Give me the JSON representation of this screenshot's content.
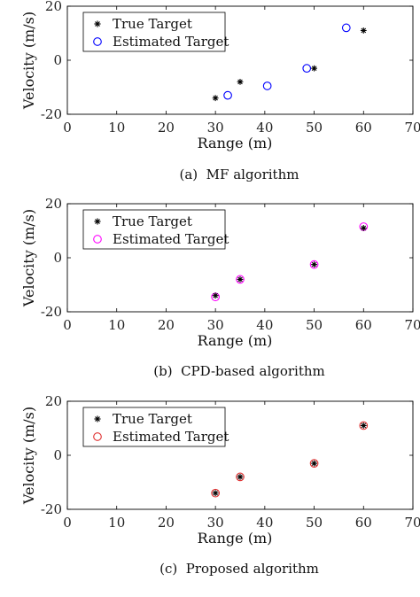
{
  "chart_data": [
    {
      "type": "scatter",
      "caption": "(a)  MF algorithm",
      "xlabel": "Range (m)",
      "ylabel": "Velocity (m/s)",
      "xlim": [
        0,
        70
      ],
      "ylim": [
        -20,
        20
      ],
      "xticks": [
        "0",
        "10",
        "20",
        "30",
        "40",
        "50",
        "60",
        "70"
      ],
      "yticks": [
        "20",
        "0",
        "-20"
      ],
      "grid": false,
      "legend_position": "top-left",
      "series": [
        {
          "name": "True Target",
          "marker": "asterisk",
          "color": "#000000",
          "points": [
            [
              30,
              -14
            ],
            [
              35,
              -8
            ],
            [
              50,
              -3
            ],
            [
              60,
              11
            ]
          ]
        },
        {
          "name": "Estimated Target",
          "marker": "circle",
          "color": "#0000ff",
          "points": [
            [
              32.5,
              -13
            ],
            [
              40.5,
              -9.5
            ],
            [
              48.5,
              -3
            ],
            [
              56.5,
              12
            ]
          ]
        }
      ]
    },
    {
      "type": "scatter",
      "caption": "(b)  CPD-based algorithm",
      "xlabel": "Range (m)",
      "ylabel": "Velocity (m/s)",
      "xlim": [
        0,
        70
      ],
      "ylim": [
        -20,
        20
      ],
      "xticks": [
        "0",
        "10",
        "20",
        "30",
        "40",
        "50",
        "60",
        "70"
      ],
      "yticks": [
        "20",
        "0",
        "-20"
      ],
      "grid": false,
      "legend_position": "top-left",
      "series": [
        {
          "name": "True Target",
          "marker": "asterisk",
          "color": "#000000",
          "points": [
            [
              30,
              -14
            ],
            [
              35,
              -8
            ],
            [
              50,
              -2.5
            ],
            [
              60,
              11
            ]
          ]
        },
        {
          "name": "Estimated Target",
          "marker": "circle",
          "color": "#ff00ff",
          "points": [
            [
              30,
              -14.5
            ],
            [
              35,
              -8
            ],
            [
              50,
              -2.5
            ],
            [
              60,
              11.5
            ]
          ]
        }
      ]
    },
    {
      "type": "scatter",
      "caption": "(c)  Proposed algorithm",
      "xlabel": "Range (m)",
      "ylabel": "Velocity (m/s)",
      "xlim": [
        0,
        70
      ],
      "ylim": [
        -20,
        20
      ],
      "xticks": [
        "0",
        "10",
        "20",
        "30",
        "40",
        "50",
        "60",
        "70"
      ],
      "yticks": [
        "20",
        "0",
        "-20"
      ],
      "grid": false,
      "legend_position": "top-left",
      "series": [
        {
          "name": "True Target",
          "marker": "asterisk",
          "color": "#000000",
          "points": [
            [
              30,
              -14
            ],
            [
              35,
              -8
            ],
            [
              50,
              -3
            ],
            [
              60,
              11
            ]
          ]
        },
        {
          "name": "Estimated Target",
          "marker": "circle",
          "color": "#e03030",
          "points": [
            [
              30,
              -14
            ],
            [
              35,
              -8
            ],
            [
              50,
              -3
            ],
            [
              60,
              11
            ]
          ]
        }
      ]
    }
  ]
}
